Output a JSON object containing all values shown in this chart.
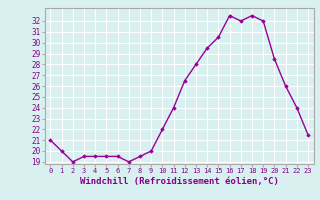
{
  "x": [
    0,
    1,
    2,
    3,
    4,
    5,
    6,
    7,
    8,
    9,
    10,
    11,
    12,
    13,
    14,
    15,
    16,
    17,
    18,
    19,
    20,
    21,
    22,
    23
  ],
  "y": [
    21.0,
    20.0,
    19.0,
    19.5,
    19.5,
    19.5,
    19.5,
    19.0,
    19.5,
    20.0,
    22.0,
    24.0,
    26.5,
    28.0,
    29.5,
    30.5,
    32.5,
    32.0,
    32.5,
    32.0,
    28.5,
    26.0,
    24.0,
    21.5
  ],
  "line_color": "#990099",
  "marker": "D",
  "markersize": 1.8,
  "linewidth": 1.0,
  "xlabel": "Windchill (Refroidissement éolien,°C)",
  "xlim": [
    -0.5,
    23.5
  ],
  "ylim": [
    18.8,
    33.2
  ],
  "yticks": [
    19,
    20,
    21,
    22,
    23,
    24,
    25,
    26,
    27,
    28,
    29,
    30,
    31,
    32
  ],
  "xticks": [
    0,
    1,
    2,
    3,
    4,
    5,
    6,
    7,
    8,
    9,
    10,
    11,
    12,
    13,
    14,
    15,
    16,
    17,
    18,
    19,
    20,
    21,
    22,
    23
  ],
  "bg_color": "#d8f0f0",
  "grid_color": "#b8d8d8",
  "spine_color": "#aaaaaa",
  "tick_color": "#880088",
  "label_color": "#880088",
  "xlabel_fontsize": 6.5,
  "ytick_fontsize": 5.5,
  "xtick_fontsize": 5.0
}
